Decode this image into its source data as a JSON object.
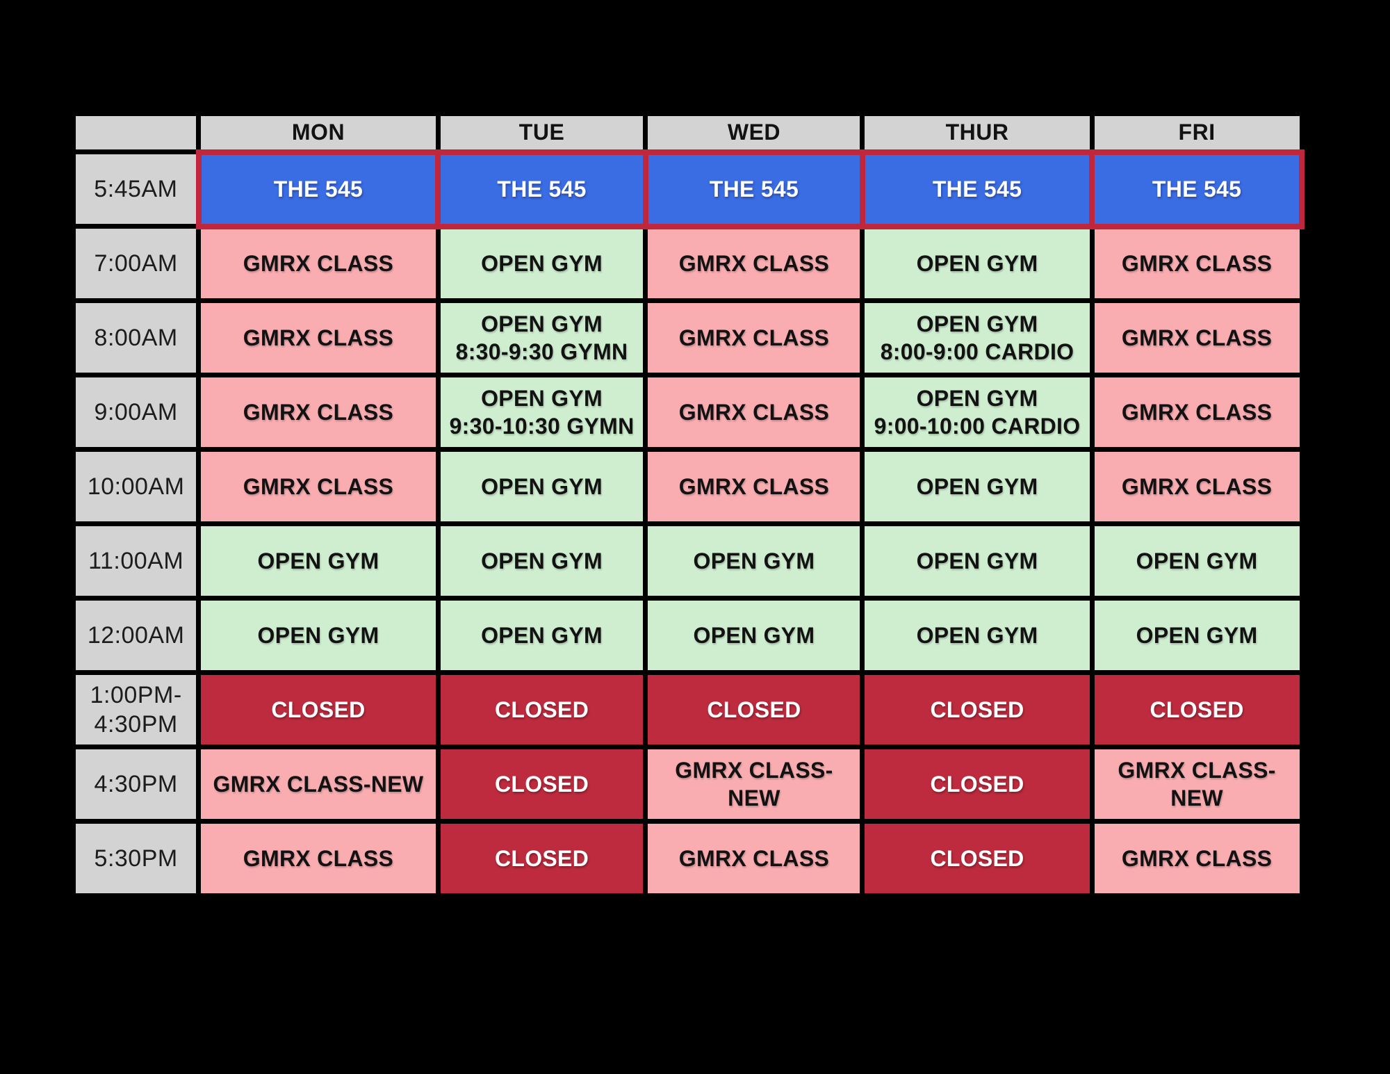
{
  "table": {
    "columns": [
      "",
      "MON",
      "TUE",
      "WED",
      "THUR",
      "FRI"
    ],
    "rows": [
      {
        "time": [
          "5:45AM"
        ],
        "cells": [
          {
            "type": "the545",
            "lines": [
              "THE 545"
            ]
          },
          {
            "type": "the545",
            "lines": [
              "THE 545"
            ]
          },
          {
            "type": "the545",
            "lines": [
              "THE 545"
            ]
          },
          {
            "type": "the545",
            "lines": [
              "THE 545"
            ]
          },
          {
            "type": "the545",
            "lines": [
              "THE 545"
            ]
          }
        ]
      },
      {
        "time": [
          "7:00AM"
        ],
        "cells": [
          {
            "type": "class",
            "lines": [
              "GMRX CLASS"
            ]
          },
          {
            "type": "open",
            "lines": [
              "OPEN GYM"
            ]
          },
          {
            "type": "class",
            "lines": [
              "GMRX CLASS"
            ]
          },
          {
            "type": "open",
            "lines": [
              "OPEN GYM"
            ]
          },
          {
            "type": "class",
            "lines": [
              "GMRX CLASS"
            ]
          }
        ]
      },
      {
        "time": [
          "8:00AM"
        ],
        "cells": [
          {
            "type": "class",
            "lines": [
              "GMRX CLASS"
            ]
          },
          {
            "type": "open",
            "lines": [
              "OPEN GYM",
              "8:30-9:30 GYMN"
            ]
          },
          {
            "type": "class",
            "lines": [
              "GMRX CLASS"
            ]
          },
          {
            "type": "open",
            "lines": [
              "OPEN GYM",
              "8:00-9:00 CARDIO"
            ]
          },
          {
            "type": "class",
            "lines": [
              "GMRX CLASS"
            ]
          }
        ]
      },
      {
        "time": [
          "9:00AM"
        ],
        "cells": [
          {
            "type": "class",
            "lines": [
              "GMRX CLASS"
            ]
          },
          {
            "type": "open",
            "lines": [
              "OPEN GYM",
              "9:30-10:30 GYMN"
            ]
          },
          {
            "type": "class",
            "lines": [
              "GMRX CLASS"
            ]
          },
          {
            "type": "open",
            "lines": [
              "OPEN GYM",
              "9:00-10:00 CARDIO"
            ]
          },
          {
            "type": "class",
            "lines": [
              "GMRX CLASS"
            ]
          }
        ]
      },
      {
        "time": [
          "10:00AM"
        ],
        "cells": [
          {
            "type": "class",
            "lines": [
              "GMRX CLASS"
            ]
          },
          {
            "type": "open",
            "lines": [
              "OPEN GYM"
            ]
          },
          {
            "type": "class",
            "lines": [
              "GMRX CLASS"
            ]
          },
          {
            "type": "open",
            "lines": [
              "OPEN GYM"
            ]
          },
          {
            "type": "class",
            "lines": [
              "GMRX CLASS"
            ]
          }
        ]
      },
      {
        "time": [
          "11:00AM"
        ],
        "cells": [
          {
            "type": "open",
            "lines": [
              "OPEN GYM"
            ]
          },
          {
            "type": "open",
            "lines": [
              "OPEN GYM"
            ]
          },
          {
            "type": "open",
            "lines": [
              "OPEN GYM"
            ]
          },
          {
            "type": "open",
            "lines": [
              "OPEN GYM"
            ]
          },
          {
            "type": "open",
            "lines": [
              "OPEN GYM"
            ]
          }
        ]
      },
      {
        "time": [
          "12:00AM"
        ],
        "cells": [
          {
            "type": "open",
            "lines": [
              "OPEN GYM"
            ]
          },
          {
            "type": "open",
            "lines": [
              "OPEN GYM"
            ]
          },
          {
            "type": "open",
            "lines": [
              "OPEN GYM"
            ]
          },
          {
            "type": "open",
            "lines": [
              "OPEN GYM"
            ]
          },
          {
            "type": "open",
            "lines": [
              "OPEN GYM"
            ]
          }
        ]
      },
      {
        "time": [
          "1:00PM-",
          "4:30PM"
        ],
        "cells": [
          {
            "type": "closed",
            "lines": [
              "CLOSED"
            ]
          },
          {
            "type": "closed",
            "lines": [
              "CLOSED"
            ]
          },
          {
            "type": "closed",
            "lines": [
              "CLOSED"
            ]
          },
          {
            "type": "closed",
            "lines": [
              "CLOSED"
            ]
          },
          {
            "type": "closed",
            "lines": [
              "CLOSED"
            ]
          }
        ]
      },
      {
        "time": [
          "4:30PM"
        ],
        "cells": [
          {
            "type": "class",
            "lines": [
              "GMRX CLASS-NEW"
            ]
          },
          {
            "type": "closed",
            "lines": [
              "CLOSED"
            ]
          },
          {
            "type": "class",
            "lines": [
              "GMRX CLASS-NEW"
            ]
          },
          {
            "type": "closed",
            "lines": [
              "CLOSED"
            ]
          },
          {
            "type": "class",
            "lines": [
              "GMRX CLASS-NEW"
            ]
          }
        ]
      },
      {
        "time": [
          "5:30PM"
        ],
        "cells": [
          {
            "type": "class",
            "lines": [
              "GMRX CLASS"
            ]
          },
          {
            "type": "closed",
            "lines": [
              "CLOSED"
            ]
          },
          {
            "type": "class",
            "lines": [
              "GMRX CLASS"
            ]
          },
          {
            "type": "closed",
            "lines": [
              "CLOSED"
            ]
          },
          {
            "type": "class",
            "lines": [
              "GMRX CLASS"
            ]
          }
        ]
      }
    ]
  },
  "colors": {
    "background": "#000000",
    "header_gray": "#d3d3d4",
    "class_pink": "#f9adb1",
    "open_green": "#cfeed0",
    "the545_blue": "#3a6ce4",
    "closed_red": "#be2b3e",
    "highlight_border_red": "#c0263c",
    "text_dark": "#121212",
    "text_white": "#ffffff"
  }
}
